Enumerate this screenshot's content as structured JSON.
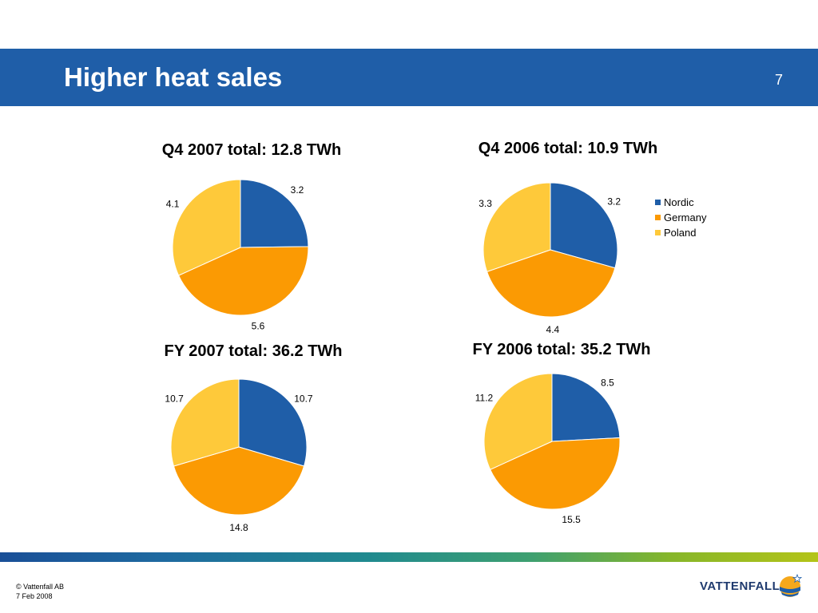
{
  "slide": {
    "title": "Higher heat sales",
    "page_number": "7",
    "footer_line1": "© Vattenfall AB",
    "footer_line2": "7 Feb 2008",
    "logo_text": "VATTENFALL"
  },
  "colors": {
    "header": "#1f5ea8",
    "Nordic": "#1f5ea8",
    "Germany": "#fb9a03",
    "Poland": "#fec93a"
  },
  "legend": {
    "items": [
      {
        "label": "Nordic",
        "color": "#1f5ea8"
      },
      {
        "label": "Germany",
        "color": "#fb9a03"
      },
      {
        "label": "Poland",
        "color": "#fec93a"
      }
    ],
    "placement": "right"
  },
  "chart_data": [
    {
      "type": "pie",
      "title": "Q4 2007 total: 12.8 TWh",
      "categories": [
        "Nordic",
        "Germany",
        "Poland"
      ],
      "values": [
        3.2,
        5.6,
        4.1
      ],
      "labels": [
        "3.2",
        "5.6",
        "4.1"
      ]
    },
    {
      "type": "pie",
      "title": "Q4 2006 total: 10.9 TWh",
      "categories": [
        "Nordic",
        "Germany",
        "Poland"
      ],
      "values": [
        3.2,
        4.4,
        3.3
      ],
      "labels": [
        "3.2",
        "4.4",
        "3.3"
      ]
    },
    {
      "type": "pie",
      "title": "FY 2007 total: 36.2 TWh",
      "categories": [
        "Nordic",
        "Germany",
        "Poland"
      ],
      "values": [
        10.7,
        14.8,
        10.7
      ],
      "labels": [
        "10.7",
        "14.8",
        "10.7"
      ]
    },
    {
      "type": "pie",
      "title": "FY 2006 total: 35.2 TWh",
      "categories": [
        "Nordic",
        "Germany",
        "Poland"
      ],
      "values": [
        8.5,
        15.5,
        11.2
      ],
      "labels": [
        "8.5",
        "15.5",
        "11.2"
      ]
    }
  ]
}
